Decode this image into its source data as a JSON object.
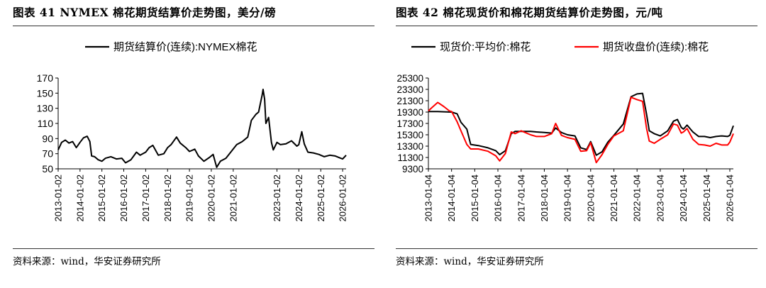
{
  "left_panel": {
    "title": "图表 41 NYMEX 棉花期货结算价走势图，美分/磅",
    "source": "资料来源：wind，华安证券研究所"
  },
  "right_panel": {
    "title": "图表 42 棉花现货价和棉花期货结算价走势图，元/吨",
    "source": "资料来源：wind，华安证券研究所"
  },
  "chart_data": [
    {
      "type": "line",
      "legend_position": "top-center",
      "grid": false,
      "ylim": [
        50,
        170
      ],
      "yticks": [
        50,
        70,
        90,
        110,
        130,
        150,
        170
      ],
      "xlim": [
        "2013-01-02",
        "2026-03-01"
      ],
      "xticks": [
        "2013-01-02",
        "2014-01-02",
        "2015-01-02",
        "2016-01-02",
        "2017-01-02",
        "2018-01-02",
        "2019-01-02",
        "2020-01-02",
        "2021-01-02",
        "2023-01-02",
        "2024-01-02",
        "2025-01-02",
        "2026-01-02"
      ],
      "series": [
        {
          "name": "期货结算价(连续):NYMEX棉花",
          "color": "#000000",
          "points": [
            [
              "2013-01-02",
              75
            ],
            [
              "2013-03-01",
              85
            ],
            [
              "2013-05-01",
              88
            ],
            [
              "2013-07-01",
              84
            ],
            [
              "2013-09-01",
              86
            ],
            [
              "2013-11-01",
              78
            ],
            [
              "2014-01-02",
              85
            ],
            [
              "2014-03-01",
              91
            ],
            [
              "2014-05-01",
              93
            ],
            [
              "2014-06-15",
              86
            ],
            [
              "2014-07-15",
              67
            ],
            [
              "2014-09-01",
              66
            ],
            [
              "2014-11-01",
              62
            ],
            [
              "2015-01-02",
              60
            ],
            [
              "2015-03-01",
              64
            ],
            [
              "2015-06-01",
              66
            ],
            [
              "2015-09-01",
              63
            ],
            [
              "2015-12-01",
              64
            ],
            [
              "2016-02-01",
              58
            ],
            [
              "2016-05-01",
              62
            ],
            [
              "2016-08-01",
              72
            ],
            [
              "2016-10-01",
              68
            ],
            [
              "2017-01-02",
              72
            ],
            [
              "2017-03-01",
              78
            ],
            [
              "2017-05-01",
              81
            ],
            [
              "2017-08-01",
              68
            ],
            [
              "2017-11-01",
              70
            ],
            [
              "2018-01-02",
              78
            ],
            [
              "2018-03-01",
              82
            ],
            [
              "2018-06-01",
              92
            ],
            [
              "2018-08-01",
              84
            ],
            [
              "2018-11-01",
              78
            ],
            [
              "2019-01-02",
              73
            ],
            [
              "2019-04-01",
              76
            ],
            [
              "2019-06-01",
              67
            ],
            [
              "2019-09-01",
              60
            ],
            [
              "2019-12-01",
              65
            ],
            [
              "2020-02-01",
              69
            ],
            [
              "2020-04-01",
              52
            ],
            [
              "2020-06-01",
              60
            ],
            [
              "2020-09-01",
              64
            ],
            [
              "2020-12-01",
              73
            ],
            [
              "2021-03-01",
              82
            ],
            [
              "2021-06-01",
              86
            ],
            [
              "2021-09-01",
              92
            ],
            [
              "2021-11-01",
              114
            ],
            [
              "2022-01-15",
              122
            ],
            [
              "2022-03-01",
              125
            ],
            [
              "2022-05-01",
              148
            ],
            [
              "2022-05-15",
              155
            ],
            [
              "2022-06-10",
              142
            ],
            [
              "2022-07-01",
              110
            ],
            [
              "2022-08-15",
              118
            ],
            [
              "2022-10-01",
              85
            ],
            [
              "2022-11-01",
              75
            ],
            [
              "2023-01-02",
              85
            ],
            [
              "2023-03-01",
              82
            ],
            [
              "2023-06-01",
              83
            ],
            [
              "2023-09-01",
              87
            ],
            [
              "2023-12-01",
              80
            ],
            [
              "2024-01-02",
              82
            ],
            [
              "2024-02-20",
              99
            ],
            [
              "2024-04-01",
              83
            ],
            [
              "2024-06-01",
              72
            ],
            [
              "2024-09-01",
              71
            ],
            [
              "2024-12-01",
              69
            ],
            [
              "2025-03-01",
              66
            ],
            [
              "2025-06-01",
              68
            ],
            [
              "2025-09-01",
              67
            ],
            [
              "2025-12-01",
              64
            ],
            [
              "2026-01-02",
              63
            ],
            [
              "2026-03-01",
              68
            ]
          ]
        }
      ]
    },
    {
      "type": "line",
      "legend_position": "top-center",
      "grid": false,
      "ylim": [
        9300,
        25300
      ],
      "yticks": [
        9300,
        11300,
        13300,
        15300,
        17300,
        19300,
        21300,
        23300,
        25300
      ],
      "xlim": [
        "2013-01-04",
        "2026-03-01"
      ],
      "xticks": [
        "2013-01-04",
        "2014-01-04",
        "2015-01-04",
        "2016-01-04",
        "2017-01-04",
        "2018-01-04",
        "2019-01-04",
        "2020-01-04",
        "2021-01-04",
        "2022-01-04",
        "2023-01-04",
        "2024-01-04",
        "2025-01-04",
        "2026-01-04"
      ],
      "series": [
        {
          "name": "现货价:平均价:棉花",
          "color": "#000000",
          "points": [
            [
              "2013-01-04",
              19400
            ],
            [
              "2013-06-01",
              19400
            ],
            [
              "2014-01-04",
              19300
            ],
            [
              "2014-04-01",
              19000
            ],
            [
              "2014-06-01",
              17500
            ],
            [
              "2014-09-01",
              16300
            ],
            [
              "2014-11-01",
              13600
            ],
            [
              "2015-03-01",
              13400
            ],
            [
              "2015-08-01",
              13000
            ],
            [
              "2015-12-01",
              12500
            ],
            [
              "2016-02-01",
              11800
            ],
            [
              "2016-05-01",
              12500
            ],
            [
              "2016-08-01",
              15500
            ],
            [
              "2016-10-01",
              15900
            ],
            [
              "2017-01-04",
              15900
            ],
            [
              "2017-06-01",
              15900
            ],
            [
              "2017-09-01",
              15800
            ],
            [
              "2018-01-04",
              15700
            ],
            [
              "2018-05-01",
              15600
            ],
            [
              "2018-07-01",
              16500
            ],
            [
              "2018-10-01",
              15700
            ],
            [
              "2019-01-04",
              15300
            ],
            [
              "2019-05-01",
              15100
            ],
            [
              "2019-08-01",
              13000
            ],
            [
              "2019-11-01",
              12700
            ],
            [
              "2020-01-04",
              14100
            ],
            [
              "2020-04-01",
              11700
            ],
            [
              "2020-07-01",
              12300
            ],
            [
              "2020-10-01",
              14000
            ],
            [
              "2021-01-04",
              15200
            ],
            [
              "2021-06-01",
              17200
            ],
            [
              "2021-10-01",
              22000
            ],
            [
              "2022-01-04",
              22500
            ],
            [
              "2022-04-01",
              22600
            ],
            [
              "2022-06-01",
              19000
            ],
            [
              "2022-07-15",
              16000
            ],
            [
              "2022-10-01",
              15500
            ],
            [
              "2023-01-04",
              15100
            ],
            [
              "2023-05-01",
              16000
            ],
            [
              "2023-08-01",
              17700
            ],
            [
              "2023-10-01",
              18000
            ],
            [
              "2023-12-01",
              16600
            ],
            [
              "2024-01-04",
              16300
            ],
            [
              "2024-03-01",
              17000
            ],
            [
              "2024-06-01",
              15800
            ],
            [
              "2024-09-01",
              15000
            ],
            [
              "2024-12-01",
              15000
            ],
            [
              "2025-03-01",
              14800
            ],
            [
              "2025-06-01",
              15000
            ],
            [
              "2025-09-01",
              15100
            ],
            [
              "2025-12-01",
              15000
            ],
            [
              "2026-01-04",
              15200
            ],
            [
              "2026-03-01",
              16900
            ]
          ]
        },
        {
          "name": "期货收盘价(连续):棉花",
          "color": "#ff0000",
          "points": [
            [
              "2013-01-04",
              19500
            ],
            [
              "2013-03-01",
              20100
            ],
            [
              "2013-06-01",
              21000
            ],
            [
              "2013-09-01",
              20300
            ],
            [
              "2013-12-01",
              19500
            ],
            [
              "2014-01-04",
              19400
            ],
            [
              "2014-04-01",
              17600
            ],
            [
              "2014-06-01",
              16000
            ],
            [
              "2014-09-01",
              13600
            ],
            [
              "2014-11-01",
              12800
            ],
            [
              "2015-03-01",
              12800
            ],
            [
              "2015-08-01",
              12400
            ],
            [
              "2015-12-01",
              11600
            ],
            [
              "2016-02-01",
              10700
            ],
            [
              "2016-05-01",
              12000
            ],
            [
              "2016-08-01",
              15800
            ],
            [
              "2016-10-01",
              15500
            ],
            [
              "2017-01-04",
              16000
            ],
            [
              "2017-06-01",
              15300
            ],
            [
              "2017-09-01",
              15000
            ],
            [
              "2018-01-04",
              15000
            ],
            [
              "2018-05-01",
              15500
            ],
            [
              "2018-07-01",
              17300
            ],
            [
              "2018-10-01",
              15200
            ],
            [
              "2019-01-04",
              14800
            ],
            [
              "2019-05-01",
              14500
            ],
            [
              "2019-08-01",
              12400
            ],
            [
              "2019-11-01",
              12500
            ],
            [
              "2020-01-04",
              13900
            ],
            [
              "2020-04-01",
              10400
            ],
            [
              "2020-07-01",
              11800
            ],
            [
              "2020-10-01",
              13600
            ],
            [
              "2021-01-04",
              15100
            ],
            [
              "2021-06-01",
              16000
            ],
            [
              "2021-10-01",
              21900
            ],
            [
              "2022-01-04",
              21500
            ],
            [
              "2022-04-01",
              21200
            ],
            [
              "2022-06-01",
              16500
            ],
            [
              "2022-07-15",
              14200
            ],
            [
              "2022-10-01",
              13800
            ],
            [
              "2023-01-04",
              14500
            ],
            [
              "2023-05-01",
              15300
            ],
            [
              "2023-08-01",
              17200
            ],
            [
              "2023-10-01",
              17000
            ],
            [
              "2023-12-01",
              15600
            ],
            [
              "2024-01-04",
              15800
            ],
            [
              "2024-03-01",
              16400
            ],
            [
              "2024-06-01",
              14500
            ],
            [
              "2024-09-01",
              13600
            ],
            [
              "2024-12-01",
              13500
            ],
            [
              "2025-03-01",
              13300
            ],
            [
              "2025-06-01",
              13800
            ],
            [
              "2025-09-01",
              13500
            ],
            [
              "2025-12-01",
              13500
            ],
            [
              "2026-01-04",
              14000
            ],
            [
              "2026-03-01",
              15500
            ]
          ]
        }
      ]
    }
  ]
}
